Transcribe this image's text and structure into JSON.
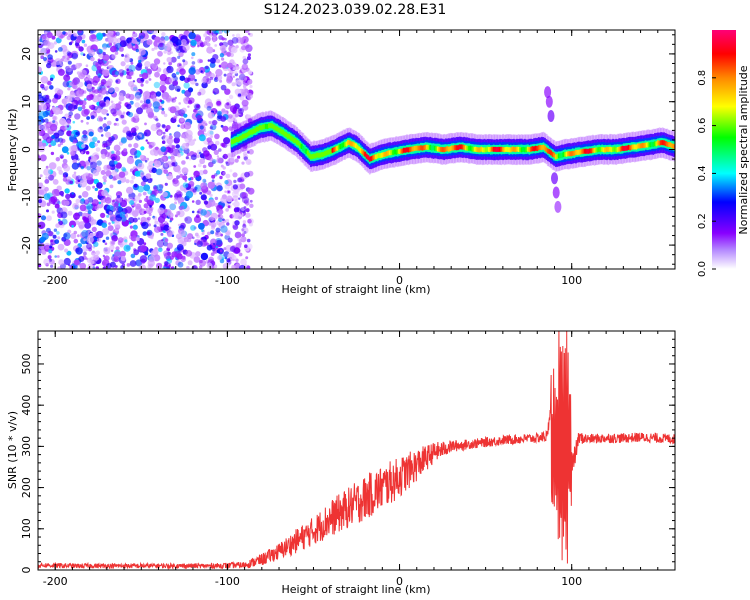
{
  "title": "S124.2023.039.02.28.E31",
  "colors": {
    "snr_line": "#ee3333",
    "axis": "#000000",
    "background": "#ffffff"
  },
  "chart_data": [
    {
      "type": "heatmap",
      "xlabel": "Height of straight line (km)",
      "ylabel": "Frequency (Hz)",
      "xlim": [
        -210,
        160
      ],
      "ylim": [
        -25,
        25
      ],
      "x_ticks": [
        -200,
        -100,
        0,
        100
      ],
      "y_ticks": [
        -20,
        -10,
        0,
        10,
        20
      ],
      "grid": false,
      "colorbar": {
        "label": "Normalized spectral amplitude",
        "range": [
          0.0,
          1.0
        ],
        "ticks": [
          "0.0",
          "0.2",
          "0.4",
          "0.6",
          "0.8"
        ],
        "tick_values": [
          0.0,
          0.2,
          0.4,
          0.6,
          0.8
        ],
        "colormap": [
          "#ffffff",
          "#8800ff",
          "#0000ff",
          "#00ffff",
          "#00ff00",
          "#ffff00",
          "#ff8800",
          "#ff0000",
          "#ff0066"
        ]
      },
      "noise_region_x": [
        -210,
        -92
      ],
      "signal_ridge": [
        {
          "x": -98,
          "y": 1.5,
          "w": 2
        },
        {
          "x": -90,
          "y": 3.0,
          "w": 2
        },
        {
          "x": -82,
          "y": 4.5,
          "w": 2
        },
        {
          "x": -75,
          "y": 5.0,
          "w": 2
        },
        {
          "x": -68,
          "y": 3.5,
          "w": 2
        },
        {
          "x": -60,
          "y": 1.5,
          "w": 2
        },
        {
          "x": -52,
          "y": -1.5,
          "w": 2
        },
        {
          "x": -45,
          "y": -1.0,
          "w": 2
        },
        {
          "x": -38,
          "y": 0.0,
          "w": 2
        },
        {
          "x": -30,
          "y": 1.5,
          "w": 2
        },
        {
          "x": -25,
          "y": 0.5,
          "w": 2
        },
        {
          "x": -18,
          "y": -2.0,
          "w": 2
        },
        {
          "x": -10,
          "y": -1.0,
          "w": 2
        },
        {
          "x": -3,
          "y": -0.5,
          "w": 2
        },
        {
          "x": 5,
          "y": 0.0,
          "w": 2
        },
        {
          "x": 15,
          "y": 0.5,
          "w": 2
        },
        {
          "x": 25,
          "y": 0.0,
          "w": 2
        },
        {
          "x": 35,
          "y": 0.5,
          "w": 2
        },
        {
          "x": 45,
          "y": 0.0,
          "w": 2
        },
        {
          "x": 55,
          "y": 0.0,
          "w": 2
        },
        {
          "x": 65,
          "y": 0.0,
          "w": 2
        },
        {
          "x": 75,
          "y": 0.0,
          "w": 2
        },
        {
          "x": 83,
          "y": 0.5,
          "w": 2
        },
        {
          "x": 90,
          "y": -1.5,
          "w": 2
        },
        {
          "x": 96,
          "y": -1.0,
          "w": 2
        },
        {
          "x": 105,
          "y": -0.5,
          "w": 2
        },
        {
          "x": 115,
          "y": 0.0,
          "w": 2
        },
        {
          "x": 125,
          "y": 0.0,
          "w": 2
        },
        {
          "x": 135,
          "y": 0.5,
          "w": 2
        },
        {
          "x": 145,
          "y": 1.0,
          "w": 2
        },
        {
          "x": 152,
          "y": 1.5,
          "w": 2
        },
        {
          "x": 160,
          "y": 0.5,
          "w": 2
        }
      ]
    },
    {
      "type": "line",
      "xlabel": "Height of straight line (km)",
      "ylabel": "SNR (10 * v/v)",
      "xlim": [
        -210,
        160
      ],
      "ylim": [
        0,
        580
      ],
      "x_ticks": [
        -200,
        -100,
        0,
        100
      ],
      "y_ticks": [
        0,
        100,
        200,
        300,
        400,
        500
      ],
      "grid": false,
      "series": [
        {
          "x": [
            -210,
            -190,
            -170,
            -150,
            -130,
            -110,
            -90,
            -80,
            -70,
            -60,
            -50,
            -40,
            -30,
            -20,
            -10,
            0,
            10,
            20,
            30,
            40,
            50,
            60,
            70,
            80,
            86,
            90,
            92,
            94,
            96,
            98,
            100,
            104,
            110,
            120,
            130,
            140,
            150,
            160
          ],
          "y": [
            12,
            10,
            10,
            10,
            10,
            10,
            12,
            25,
            45,
            70,
            95,
            125,
            150,
            175,
            200,
            225,
            255,
            285,
            300,
            305,
            310,
            315,
            318,
            320,
            325,
            520,
            80,
            560,
            60,
            450,
            240,
            320,
            318,
            320,
            320,
            322,
            320,
            318
          ],
          "noise_amplitude": [
            6,
            6,
            6,
            6,
            6,
            6,
            8,
            15,
            20,
            30,
            35,
            45,
            50,
            55,
            55,
            50,
            40,
            25,
            15,
            12,
            12,
            12,
            12,
            12,
            15,
            40,
            60,
            40,
            60,
            50,
            40,
            15,
            12,
            12,
            12,
            12,
            12,
            12
          ]
        }
      ]
    }
  ]
}
